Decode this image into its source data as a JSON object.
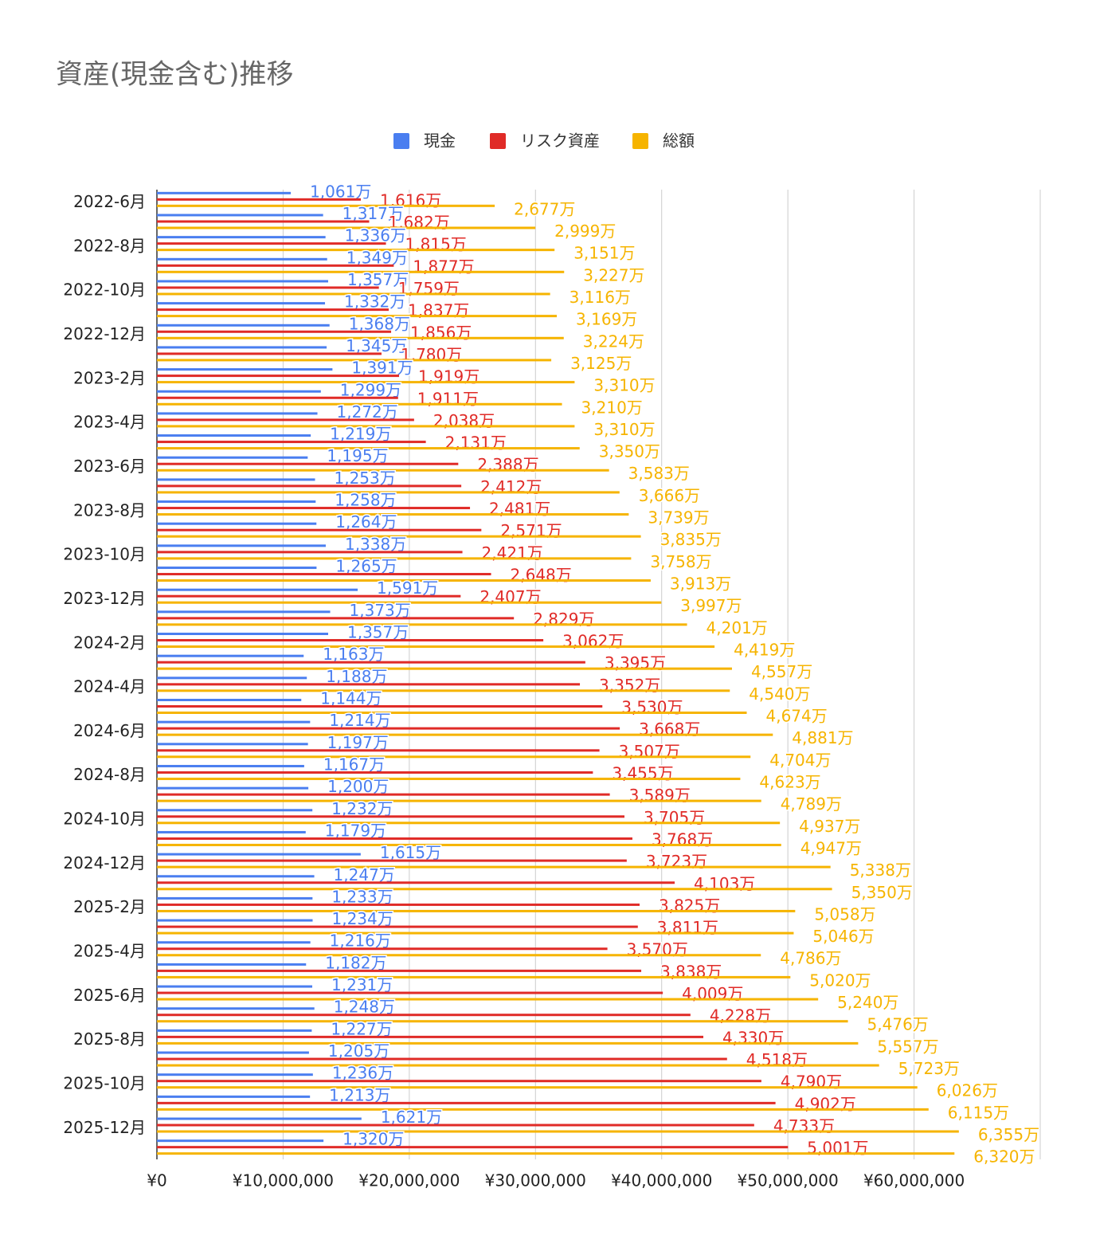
{
  "chart_data": {
    "type": "bar",
    "orientation": "horizontal",
    "title": "資産(現金含む)推移",
    "categories": [
      "2022-6月",
      null,
      "2022-8月",
      null,
      "2022-10月",
      null,
      "2022-12月",
      null,
      "2023-2月",
      null,
      "2023-4月",
      null,
      "2023-6月",
      null,
      "2023-8月",
      null,
      "2023-10月",
      null,
      "2023-12月",
      null,
      "2024-2月",
      null,
      "2024-4月",
      null,
      "2024-6月",
      null,
      "2024-8月",
      null,
      "2024-10月",
      null,
      "2024-12月",
      null,
      "2025-2月",
      null,
      "2025-4月",
      null,
      "2025-6月",
      null,
      "2025-8月",
      null,
      "2025-10月",
      null,
      "2025-12月",
      null
    ],
    "series": [
      {
        "name": "現金",
        "color": "#4a7ef0",
        "values": [
          10610000,
          13170000,
          13360000,
          13490000,
          13570000,
          13320000,
          13680000,
          13450000,
          13910000,
          12990000,
          12720000,
          12190000,
          11950000,
          12530000,
          12580000,
          12640000,
          13380000,
          12650000,
          15910000,
          13730000,
          13570000,
          11630000,
          11880000,
          11440000,
          12140000,
          11970000,
          11670000,
          12000000,
          12320000,
          11790000,
          16150000,
          12470000,
          12330000,
          12340000,
          12160000,
          11820000,
          12310000,
          12480000,
          12270000,
          12050000,
          12360000,
          12130000,
          16210000,
          13200000
        ],
        "value_labels": [
          "1,061万",
          "1,317万",
          "1,336万",
          "1,349万",
          "1,357万",
          "1,332万",
          "1,368万",
          "1,345万",
          "1,391万",
          "1,299万",
          "1,272万",
          "1,219万",
          "1,195万",
          "1,253万",
          "1,258万",
          "1,264万",
          "1,338万",
          "1,265万",
          "1,591万",
          "1,373万",
          "1,357万",
          "1,163万",
          "1,188万",
          "1,144万",
          "1,214万",
          "1,197万",
          "1,167万",
          "1,200万",
          "1,232万",
          "1,179万",
          "1,615万",
          "1,247万",
          "1,233万",
          "1,234万",
          "1,216万",
          "1,182万",
          "1,231万",
          "1,248万",
          "1,227万",
          "1,205万",
          "1,236万",
          "1,213万",
          "1,621万",
          "1,320万"
        ]
      },
      {
        "name": "リスク資産",
        "color": "#e02b27",
        "values": [
          16160000,
          16820000,
          18150000,
          18770000,
          17590000,
          18370000,
          18560000,
          17800000,
          19190000,
          19110000,
          20380000,
          21310000,
          23880000,
          24120000,
          24810000,
          25710000,
          24210000,
          26480000,
          24070000,
          28290000,
          30620000,
          33950000,
          33520000,
          35300000,
          36680000,
          35070000,
          34550000,
          35890000,
          37050000,
          37680000,
          37230000,
          41030000,
          38250000,
          38110000,
          35700000,
          38380000,
          40090000,
          42280000,
          43300000,
          45180000,
          47900000,
          49020000,
          47330000,
          50010000
        ],
        "value_labels": [
          "1,616万",
          "1,682万",
          "1,815万",
          "1,877万",
          "1,759万",
          "1,837万",
          "1,856万",
          "1,780万",
          "1,919万",
          "1,911万",
          "2,038万",
          "2,131万",
          "2,388万",
          "2,412万",
          "2,481万",
          "2,571万",
          "2,421万",
          "2,648万",
          "2,407万",
          "2,829万",
          "3,062万",
          "3,395万",
          "3,352万",
          "3,530万",
          "3,668万",
          "3,507万",
          "3,455万",
          "3,589万",
          "3,705万",
          "3,768万",
          "3,723万",
          "4,103万",
          "3,825万",
          "3,811万",
          "3,570万",
          "3,838万",
          "4,009万",
          "4,228万",
          "4,330万",
          "4,518万",
          "4,790万",
          "4,902万",
          "4,733万",
          "5,001万"
        ]
      },
      {
        "name": "総額",
        "color": "#f6b400",
        "values": [
          26770000,
          29990000,
          31510000,
          32270000,
          31160000,
          31690000,
          32240000,
          31250000,
          33100000,
          32100000,
          33100000,
          33500000,
          35830000,
          36660000,
          37390000,
          38350000,
          37580000,
          39130000,
          39970000,
          42010000,
          44190000,
          45570000,
          45400000,
          46740000,
          48810000,
          47040000,
          46230000,
          47890000,
          49370000,
          49470000,
          53380000,
          53500000,
          50580000,
          50460000,
          47860000,
          50200000,
          52400000,
          54760000,
          55570000,
          57230000,
          60260000,
          61150000,
          63550000,
          63200000
        ],
        "value_labels": [
          "2,677万",
          "2,999万",
          "3,151万",
          "3,227万",
          "3,116万",
          "3,169万",
          "3,224万",
          "3,125万",
          "3,310万",
          "3,210万",
          "3,310万",
          "3,350万",
          "3,583万",
          "3,666万",
          "3,739万",
          "3,835万",
          "3,758万",
          "3,913万",
          "3,997万",
          "4,201万",
          "4,419万",
          "4,557万",
          "4,540万",
          "4,674万",
          "4,881万",
          "4,704万",
          "4,623万",
          "4,789万",
          "4,937万",
          "4,947万",
          "5,338万",
          "5,350万",
          "5,058万",
          "5,046万",
          "4,786万",
          "5,020万",
          "5,240万",
          "5,476万",
          "5,557万",
          "5,723万",
          "6,026万",
          "6,115万",
          "6,355万",
          "6,320万"
        ]
      }
    ],
    "xlim": [
      0,
      70000000
    ],
    "xticks": [
      {
        "value": 0,
        "label": "¥0"
      },
      {
        "value": 10000000,
        "label": "¥10,000,000"
      },
      {
        "value": 20000000,
        "label": "¥20,000,000"
      },
      {
        "value": 30000000,
        "label": "¥30,000,000"
      },
      {
        "value": 40000000,
        "label": "¥40,000,000"
      },
      {
        "value": 50000000,
        "label": "¥50,000,000"
      },
      {
        "value": 60000000,
        "label": "¥60,000,000"
      }
    ],
    "grid": true,
    "legend": "top"
  }
}
